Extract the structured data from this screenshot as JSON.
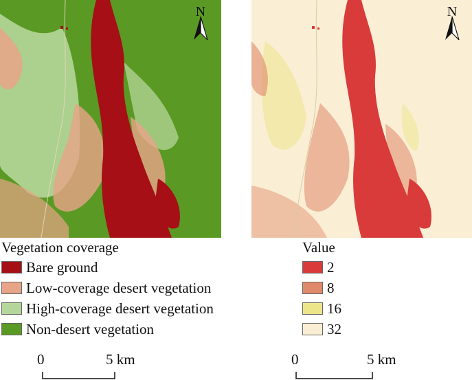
{
  "maps": {
    "left": {
      "north_label": "N",
      "palette": {
        "bare": "#a50f15",
        "low": "#e8a488",
        "high": "#b5d69a",
        "nondesert": "#5a9a24"
      }
    },
    "right": {
      "north_label": "N",
      "palette": {
        "v2": "#d93a3a",
        "v8": "#e0896a",
        "v16": "#ece58a",
        "v32": "#faeed4"
      }
    }
  },
  "legend_left": {
    "title": "Vegetation coverage",
    "items": [
      {
        "label": "Bare ground",
        "color": "#a50f15"
      },
      {
        "label": "Low-coverage desert vegetation",
        "color": "#e8a488"
      },
      {
        "label": "High-coverage desert vegetation",
        "color": "#b5d69a"
      },
      {
        "label": "Non-desert vegetation",
        "color": "#5a9a24"
      }
    ]
  },
  "legend_right": {
    "title": "Value",
    "items": [
      {
        "label": "2",
        "color": "#d93a3a"
      },
      {
        "label": "8",
        "color": "#e0896a"
      },
      {
        "label": "16",
        "color": "#ece58a"
      },
      {
        "label": "32",
        "color": "#faeed4"
      }
    ]
  },
  "scale_left": {
    "zero": "0",
    "end": "5 km"
  },
  "scale_right": {
    "zero": "0",
    "end": "5 km"
  }
}
